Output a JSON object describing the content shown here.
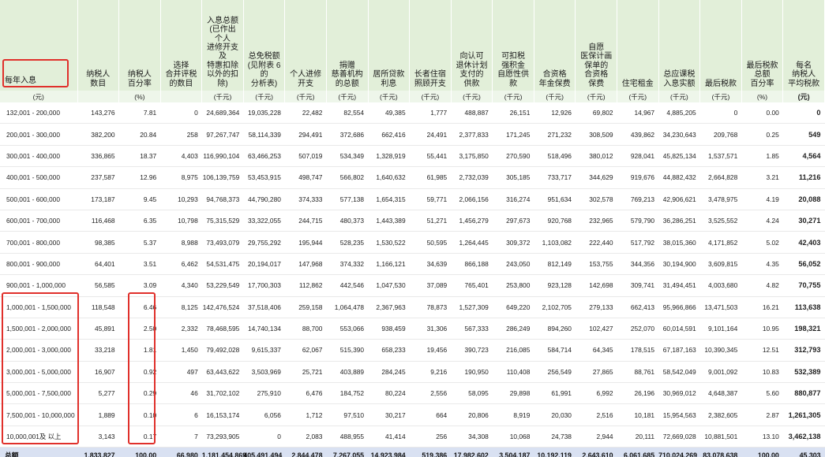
{
  "table": {
    "headers": [
      "每年入息",
      "纳税人\n数目",
      "纳税人\n百分率",
      "选择\n合并评税\n的数目",
      "入息总额\n(已作出\n个人\n进修开支\n及\n特惠扣除\n以外的扣除)",
      "总免税额\n(见附表 6\n的\n分析表)",
      "个人进修\n开支",
      "捐赠\n慈善机构\n的总额",
      "居所贷款\n利息",
      "长者住宿\n照顾开支",
      "向认可\n退休计划\n支付的\n供款",
      "可扣税\n强积金\n自愿性供款",
      "合资格\n年金保费",
      "自愿\n医保计画\n保单的\n合资格\n保费",
      "住宅租金",
      "总应课税\n入息实额",
      "最后税款",
      "最后税款\n总额\n百分率",
      "每名\n纳税人\n平均税款"
    ],
    "units": [
      "(元)",
      "",
      "(%)",
      "",
      "(千元)",
      "(千元)",
      "(千元)",
      "(千元)",
      "(千元)",
      "(千元)",
      "(千元)",
      "(千元)",
      "(千元)",
      "(千元)",
      "(千元)",
      "(千元)",
      "(千元)",
      "(%)",
      "(元)"
    ],
    "rows": [
      [
        "132,001 - 200,000",
        "143,276",
        "7.81",
        "0",
        "24,689,364",
        "19,035,228",
        "22,482",
        "82,554",
        "49,385",
        "1,777",
        "488,887",
        "26,151",
        "12,926",
        "69,802",
        "14,967",
        "4,885,205",
        "0",
        "0.00",
        "0"
      ],
      [
        "200,001 - 300,000",
        "382,200",
        "20.84",
        "258",
        "97,267,747",
        "58,114,339",
        "294,491",
        "372,686",
        "662,416",
        "24,491",
        "2,377,833",
        "171,245",
        "271,232",
        "308,509",
        "439,862",
        "34,230,643",
        "209,768",
        "0.25",
        "549"
      ],
      [
        "300,001 - 400,000",
        "336,865",
        "18.37",
        "4,403",
        "116,990,104",
        "63,466,253",
        "507,019",
        "534,349",
        "1,328,919",
        "55,441",
        "3,175,850",
        "270,590",
        "518,496",
        "380,012",
        "928,041",
        "45,825,134",
        "1,537,571",
        "1.85",
        "4,564"
      ],
      [
        "400,001 - 500,000",
        "237,587",
        "12.96",
        "8,975",
        "106,139,759",
        "53,453,915",
        "498,747",
        "566,802",
        "1,640,632",
        "61,985",
        "2,732,039",
        "305,185",
        "733,717",
        "344,629",
        "919,676",
        "44,882,432",
        "2,664,828",
        "3.21",
        "11,216"
      ],
      [
        "500,001 - 600,000",
        "173,187",
        "9.45",
        "10,293",
        "94,768,373",
        "44,790,280",
        "374,333",
        "577,138",
        "1,654,315",
        "59,771",
        "2,066,156",
        "316,274",
        "951,634",
        "302,578",
        "769,213",
        "42,906,621",
        "3,478,975",
        "4.19",
        "20,088"
      ],
      [
        "600,001 - 700,000",
        "116,468",
        "6.35",
        "10,798",
        "75,315,529",
        "33,322,055",
        "244,715",
        "480,373",
        "1,443,389",
        "51,271",
        "1,456,279",
        "297,673",
        "920,768",
        "232,965",
        "579,790",
        "36,286,251",
        "3,525,552",
        "4.24",
        "30,271"
      ],
      [
        "700,001 - 800,000",
        "98,385",
        "5.37",
        "8,988",
        "73,493,079",
        "29,755,292",
        "195,944",
        "528,235",
        "1,530,522",
        "50,595",
        "1,264,445",
        "309,372",
        "1,103,082",
        "222,440",
        "517,792",
        "38,015,360",
        "4,171,852",
        "5.02",
        "42,403"
      ],
      [
        "800,001 - 900,000",
        "64,401",
        "3.51",
        "6,462",
        "54,531,475",
        "20,194,017",
        "147,968",
        "374,332",
        "1,166,121",
        "34,639",
        "866,188",
        "243,050",
        "812,149",
        "153,755",
        "344,356",
        "30,194,900",
        "3,609,815",
        "4.35",
        "56,052"
      ],
      [
        "900,001 - 1,000,000",
        "56,585",
        "3.09",
        "4,340",
        "53,229,549",
        "17,700,303",
        "112,862",
        "442,546",
        "1,047,530",
        "37,089",
        "765,401",
        "253,800",
        "923,128",
        "142,698",
        "309,741",
        "31,494,451",
        "4,003,680",
        "4.82",
        "70,755"
      ],
      [
        "1,000,001 - 1,500,000",
        "118,548",
        "6.46",
        "8,125",
        "142,476,524",
        "37,518,406",
        "259,158",
        "1,064,478",
        "2,367,963",
        "78,873",
        "1,527,309",
        "649,220",
        "2,102,705",
        "279,133",
        "662,413",
        "95,966,866",
        "13,471,503",
        "16.21",
        "113,638"
      ],
      [
        "1,500,001 - 2,000,000",
        "45,891",
        "2.50",
        "2,332",
        "78,468,595",
        "14,740,134",
        "88,700",
        "553,066",
        "938,459",
        "31,306",
        "567,333",
        "286,249",
        "894,260",
        "102,427",
        "252,070",
        "60,014,591",
        "9,101,164",
        "10.95",
        "198,321"
      ],
      [
        "2,000,001 - 3,000,000",
        "33,218",
        "1.81",
        "1,450",
        "79,492,028",
        "9,615,337",
        "62,067",
        "515,390",
        "658,233",
        "19,456",
        "390,723",
        "216,085",
        "584,714",
        "64,345",
        "178,515",
        "67,187,163",
        "10,390,345",
        "12.51",
        "312,793"
      ],
      [
        "3,000,001 - 5,000,000",
        "16,907",
        "0.92",
        "497",
        "63,443,622",
        "3,503,969",
        "25,721",
        "403,889",
        "284,245",
        "9,216",
        "190,950",
        "110,408",
        "256,549",
        "27,865",
        "88,761",
        "58,542,049",
        "9,001,092",
        "10.83",
        "532,389"
      ],
      [
        "5,000,001 - 7,500,000",
        "5,277",
        "0.29",
        "46",
        "31,702,102",
        "275,910",
        "6,476",
        "184,752",
        "80,224",
        "2,556",
        "58,095",
        "29,898",
        "61,991",
        "6,992",
        "26,196",
        "30,969,012",
        "4,648,387",
        "5.60",
        "880,877"
      ],
      [
        "7,500,001 - 10,000,000",
        "1,889",
        "0.10",
        "6",
        "16,153,174",
        "6,056",
        "1,712",
        "97,510",
        "30,217",
        "664",
        "20,806",
        "8,919",
        "20,030",
        "2,516",
        "10,181",
        "15,954,563",
        "2,382,605",
        "2.87",
        "1,261,305"
      ],
      [
        "10,000,001及 以上",
        "3,143",
        "0.17",
        "7",
        "73,293,905",
        "0",
        "2,083",
        "488,955",
        "41,414",
        "256",
        "34,308",
        "10,068",
        "24,738",
        "2,944",
        "20,111",
        "72,669,028",
        "10,881,501",
        "13.10",
        "3,462,138"
      ]
    ],
    "total": [
      "总额",
      "1,833,827",
      "100.00",
      "66,980",
      "1,181,454,869",
      "405,491,494",
      "2,844,478",
      "7,267,055",
      "14,923,984",
      "519,386",
      "17,982,602",
      "3,504,187",
      "10,192,119",
      "2,643,610",
      "6,061,685",
      "710,024,269",
      "83,078,638",
      "100.00",
      "45,303"
    ]
  },
  "highlight_color": "#e0302b",
  "header_bg": "#e2efd9",
  "total_bg": "#d9e1f2"
}
